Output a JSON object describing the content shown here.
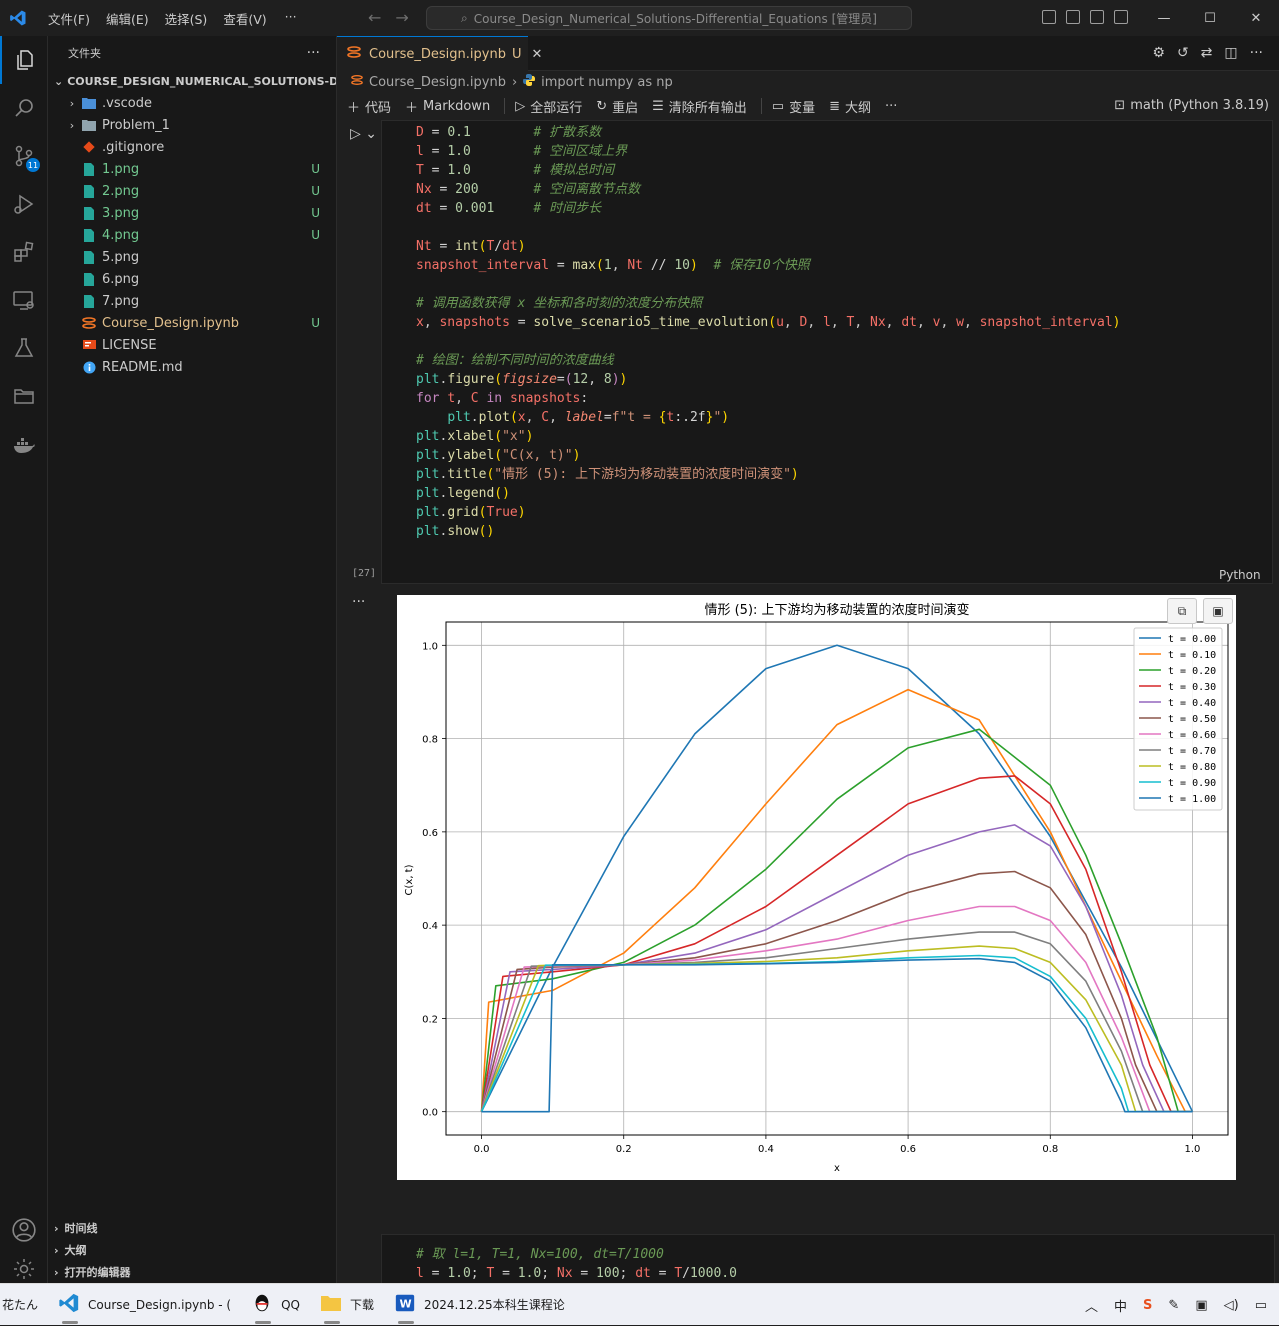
{
  "titlebar": {
    "menus": [
      "文件(F)",
      "编辑(E)",
      "选择(S)",
      "查看(V)",
      "···"
    ],
    "command_center": "Course_Design_Numerical_Solutions-Differential_Equations [管理员]"
  },
  "activity": {
    "scm_badge": "11"
  },
  "explorer": {
    "header": "文件夹",
    "root": "COURSE_DESIGN_NUMERICAL_SOLUTIONS-DIFFE...",
    "items": [
      {
        "name": ".vscode",
        "type": "folder",
        "status": ""
      },
      {
        "name": "Problem_1",
        "type": "folder",
        "status": ""
      },
      {
        "name": ".gitignore",
        "type": "file",
        "status": ""
      },
      {
        "name": "1.png",
        "type": "image",
        "status": "U"
      },
      {
        "name": "2.png",
        "type": "image",
        "status": "U"
      },
      {
        "name": "3.png",
        "type": "image",
        "status": "U"
      },
      {
        "name": "4.png",
        "type": "image",
        "status": "U"
      },
      {
        "name": "5.png",
        "type": "image",
        "status": ""
      },
      {
        "name": "6.png",
        "type": "image",
        "status": ""
      },
      {
        "name": "7.png",
        "type": "image",
        "status": ""
      },
      {
        "name": "Course_Design.ipynb",
        "type": "notebook",
        "status": "U"
      },
      {
        "name": "LICENSE",
        "type": "license",
        "status": ""
      },
      {
        "name": "README.md",
        "type": "info",
        "status": ""
      }
    ],
    "bottom_sections": [
      "时间线",
      "大纲",
      "打开的编辑器"
    ]
  },
  "editor": {
    "tab_label": "Course_Design.ipynb",
    "tab_status": "U",
    "breadcrumb": [
      "Course_Design.ipynb",
      "import numpy as np"
    ],
    "toolbar": [
      "代码",
      "Markdown",
      "全部运行",
      "重启",
      "清除所有输出",
      "变量",
      "大纲",
      "···"
    ],
    "kernel": "math (Python 3.8.19)",
    "exec_count": "[27]",
    "language": "Python",
    "code_lines": [
      "D = 0.1        # 扩散系数",
      "l = 1.0        # 空间区域上界",
      "T = 1.0        # 模拟总时间",
      "Nx = 200       # 空间离散节点数",
      "dt = 0.001     # 时间步长",
      "",
      "Nt = int(T/dt)",
      "snapshot_interval = max(1, Nt // 10)  # 保存10个快照",
      "",
      "# 调用函数获得 x 坐标和各时刻的浓度分布快照",
      "x, snapshots = solve_scenario5_time_evolution(u, D, l, T, Nx, dt, v, w, snapshot_interval)",
      "",
      "# 绘图：绘制不同时间的浓度曲线",
      "plt.figure(figsize=(12, 8))",
      "for t, C in snapshots:",
      "    plt.plot(x, C, label=f\"t = {t:.2f}\")",
      "plt.xlabel(\"x\")",
      "plt.ylabel(\"C(x, t)\")",
      "plt.title(\"情形 (5): 上下游均为移动装置的浓度时间演变\")",
      "plt.legend()",
      "plt.grid(True)",
      "plt.show()"
    ],
    "next_cell_lines": [
      "# 取 l=1, T=1, Nx=100, dt=T/1000",
      "l = 1.0; T = 1.0; Nx = 100; dt = T/1000.0"
    ]
  },
  "chart_data": {
    "type": "line",
    "title": "情形 (5): 上下游均为移动装置的浓度时间演变",
    "xlabel": "x",
    "ylabel": "C(x, t)",
    "xlim": [
      -0.05,
      1.05
    ],
    "ylim": [
      -0.05,
      1.05
    ],
    "xticks": [
      "0.0",
      "0.2",
      "0.4",
      "0.6",
      "0.8",
      "1.0"
    ],
    "yticks": [
      "0.0",
      "0.2",
      "0.4",
      "0.6",
      "0.8",
      "1.0"
    ],
    "grid": true,
    "legend_position": "top-right",
    "series": [
      {
        "name": "t = 0.00",
        "color": "#1f77b4",
        "x": [
          0,
          0.1,
          0.2,
          0.3,
          0.4,
          0.5,
          0.6,
          0.7,
          0.8,
          0.9,
          1.0
        ],
        "values": [
          0,
          0.31,
          0.59,
          0.81,
          0.95,
          1.0,
          0.95,
          0.81,
          0.59,
          0.31,
          0
        ]
      },
      {
        "name": "t = 0.10",
        "color": "#ff7f0e",
        "x": [
          0,
          0.01,
          0.1,
          0.2,
          0.3,
          0.4,
          0.5,
          0.6,
          0.7,
          0.8,
          0.85,
          0.9,
          0.95,
          0.99,
          1.0
        ],
        "values": [
          0,
          0.235,
          0.26,
          0.34,
          0.48,
          0.66,
          0.83,
          0.905,
          0.84,
          0.6,
          0.44,
          0.28,
          0.12,
          0,
          0
        ]
      },
      {
        "name": "t = 0.20",
        "color": "#2ca02c",
        "x": [
          0,
          0.02,
          0.1,
          0.2,
          0.3,
          0.4,
          0.5,
          0.6,
          0.7,
          0.8,
          0.85,
          0.9,
          0.95,
          0.98,
          1.0
        ],
        "values": [
          0,
          0.27,
          0.285,
          0.32,
          0.4,
          0.52,
          0.67,
          0.78,
          0.82,
          0.7,
          0.55,
          0.36,
          0.16,
          0,
          0
        ]
      },
      {
        "name": "t = 0.30",
        "color": "#d62728",
        "x": [
          0,
          0.03,
          0.1,
          0.2,
          0.3,
          0.4,
          0.5,
          0.6,
          0.7,
          0.75,
          0.8,
          0.85,
          0.9,
          0.94,
          0.97,
          1.0
        ],
        "values": [
          0,
          0.29,
          0.3,
          0.315,
          0.36,
          0.44,
          0.55,
          0.66,
          0.715,
          0.72,
          0.66,
          0.52,
          0.3,
          0.1,
          0,
          0
        ]
      },
      {
        "name": "t = 0.40",
        "color": "#9467bd",
        "x": [
          0,
          0.04,
          0.1,
          0.2,
          0.3,
          0.4,
          0.5,
          0.6,
          0.7,
          0.75,
          0.8,
          0.85,
          0.9,
          0.93,
          0.96,
          1.0
        ],
        "values": [
          0,
          0.3,
          0.305,
          0.315,
          0.34,
          0.39,
          0.47,
          0.55,
          0.6,
          0.615,
          0.57,
          0.44,
          0.25,
          0.1,
          0,
          0
        ]
      },
      {
        "name": "t = 0.50",
        "color": "#8c564b",
        "x": [
          0,
          0.05,
          0.1,
          0.2,
          0.3,
          0.4,
          0.5,
          0.6,
          0.7,
          0.75,
          0.8,
          0.85,
          0.9,
          0.92,
          0.95,
          1.0
        ],
        "values": [
          0,
          0.305,
          0.31,
          0.315,
          0.33,
          0.36,
          0.41,
          0.47,
          0.51,
          0.515,
          0.48,
          0.38,
          0.2,
          0.1,
          0,
          0
        ]
      },
      {
        "name": "t = 0.60",
        "color": "#e377c2",
        "x": [
          0,
          0.06,
          0.1,
          0.2,
          0.3,
          0.4,
          0.5,
          0.6,
          0.7,
          0.75,
          0.8,
          0.85,
          0.9,
          0.94,
          1.0
        ],
        "values": [
          0,
          0.31,
          0.312,
          0.315,
          0.325,
          0.345,
          0.37,
          0.41,
          0.44,
          0.44,
          0.41,
          0.32,
          0.16,
          0,
          0
        ]
      },
      {
        "name": "t = 0.70",
        "color": "#7f7f7f",
        "x": [
          0,
          0.07,
          0.1,
          0.2,
          0.3,
          0.4,
          0.5,
          0.6,
          0.7,
          0.75,
          0.8,
          0.85,
          0.9,
          0.93,
          1.0
        ],
        "values": [
          0,
          0.312,
          0.313,
          0.315,
          0.32,
          0.33,
          0.35,
          0.37,
          0.385,
          0.385,
          0.36,
          0.28,
          0.13,
          0,
          0
        ]
      },
      {
        "name": "t = 0.80",
        "color": "#bcbd22",
        "x": [
          0,
          0.08,
          0.1,
          0.2,
          0.3,
          0.4,
          0.5,
          0.6,
          0.7,
          0.75,
          0.8,
          0.85,
          0.9,
          0.92,
          1.0
        ],
        "values": [
          0,
          0.313,
          0.314,
          0.315,
          0.318,
          0.322,
          0.33,
          0.345,
          0.355,
          0.35,
          0.32,
          0.24,
          0.1,
          0,
          0
        ]
      },
      {
        "name": "t = 0.90",
        "color": "#17becf",
        "x": [
          0,
          0.09,
          0.1,
          0.2,
          0.3,
          0.4,
          0.5,
          0.6,
          0.7,
          0.75,
          0.8,
          0.85,
          0.9,
          0.91,
          1.0
        ],
        "values": [
          0,
          0.314,
          0.314,
          0.315,
          0.316,
          0.318,
          0.322,
          0.33,
          0.335,
          0.33,
          0.29,
          0.2,
          0.05,
          0,
          0
        ]
      },
      {
        "name": "t = 1.00",
        "color": "#1f77b4",
        "x": [
          0,
          0.095,
          0.1,
          0.2,
          0.3,
          0.4,
          0.5,
          0.6,
          0.7,
          0.75,
          0.8,
          0.85,
          0.9,
          0.905,
          1.0
        ],
        "values": [
          0,
          0,
          0.315,
          0.315,
          0.315,
          0.317,
          0.32,
          0.325,
          0.328,
          0.32,
          0.28,
          0.18,
          0.02,
          0,
          0
        ]
      }
    ]
  },
  "taskbar": {
    "left_text": "花たん",
    "apps": [
      "Course_Design.ipynb - (",
      "QQ",
      "下载",
      "2024.12.25本科生课程论"
    ],
    "ime": "中"
  },
  "colors": {
    "accent": "#0078d4",
    "untracked": "#73c991",
    "modified": "#e2c08d"
  }
}
